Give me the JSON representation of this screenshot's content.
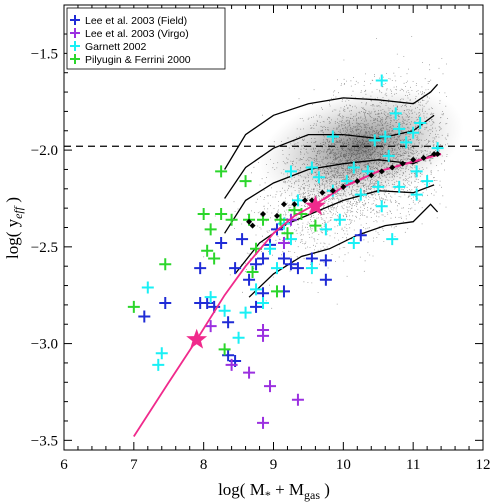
{
  "chart_data": {
    "type": "scatter",
    "xlim": [
      6,
      12
    ],
    "ylim": [
      -3.55,
      -1.25
    ],
    "x_ticks": [
      6,
      7,
      8,
      9,
      10,
      11,
      12
    ],
    "x_tick_labels": [
      "6",
      "7",
      "8",
      "9",
      "10",
      "11",
      "12"
    ],
    "y_ticks": [
      -3.5,
      -3.0,
      -2.5,
      -2.0,
      -1.5
    ],
    "y_tick_labels": [
      "−3.5",
      "−3.0",
      "−2.5",
      "−2.0",
      "−1.5"
    ],
    "xlabel": {
      "main": "log( M",
      "sub1": "*",
      "mid": " + M",
      "sub2": "gas",
      "end": " )"
    },
    "ylabel": {
      "main": "log( y",
      "sub": "eff",
      "end": " )"
    },
    "legend_position": "top-left",
    "reference_line": {
      "y": -1.98,
      "style": "dashed",
      "color": "#000000"
    },
    "series": [
      {
        "name": "Lee et al. 2003 (Field)",
        "color": "#1f2bd6",
        "marker": "plus",
        "points": [
          [
            7.15,
            -2.86
          ],
          [
            7.45,
            -2.79
          ],
          [
            7.95,
            -2.61
          ],
          [
            7.95,
            -2.79
          ],
          [
            8.05,
            -2.79
          ],
          [
            8.15,
            -2.81
          ],
          [
            8.25,
            -2.48
          ],
          [
            8.35,
            -2.89
          ],
          [
            8.35,
            -3.06
          ],
          [
            8.45,
            -3.09
          ],
          [
            8.45,
            -2.61
          ],
          [
            8.55,
            -2.46
          ],
          [
            8.65,
            -2.67
          ],
          [
            8.75,
            -2.59
          ],
          [
            8.75,
            -2.81
          ],
          [
            8.85,
            -2.56
          ],
          [
            8.85,
            -2.74
          ],
          [
            8.95,
            -2.49
          ],
          [
            9.05,
            -2.41
          ],
          [
            9.15,
            -2.56
          ],
          [
            9.15,
            -2.73
          ],
          [
            9.25,
            -2.59
          ],
          [
            9.35,
            -2.61
          ],
          [
            9.55,
            -2.56
          ],
          [
            9.75,
            -2.57
          ],
          [
            9.75,
            -2.67
          ],
          [
            10.25,
            -2.44
          ]
        ]
      },
      {
        "name": "Lee et al. 2003 (Virgo)",
        "color": "#9b30e0",
        "marker": "plus",
        "points": [
          [
            8.1,
            -2.91
          ],
          [
            8.4,
            -3.11
          ],
          [
            8.65,
            -3.15
          ],
          [
            8.85,
            -2.96
          ],
          [
            8.85,
            -2.93
          ],
          [
            8.85,
            -3.41
          ],
          [
            8.95,
            -3.22
          ],
          [
            9.35,
            -3.29
          ],
          [
            9.15,
            -2.48
          ],
          [
            9.25,
            -2.36
          ]
        ]
      },
      {
        "name": "Garnett 2002",
        "color": "#19f0f5",
        "marker": "plus",
        "points": [
          [
            7.2,
            -2.71
          ],
          [
            7.35,
            -3.11
          ],
          [
            7.4,
            -3.05
          ],
          [
            8.1,
            -2.76
          ],
          [
            8.3,
            -2.83
          ],
          [
            8.5,
            -2.97
          ],
          [
            8.6,
            -2.84
          ],
          [
            8.75,
            -2.72
          ],
          [
            8.85,
            -2.79
          ],
          [
            8.95,
            -2.51
          ],
          [
            9.05,
            -2.61
          ],
          [
            9.15,
            -2.38
          ],
          [
            9.25,
            -2.46
          ],
          [
            9.25,
            -2.11
          ],
          [
            9.35,
            -2.26
          ],
          [
            9.55,
            -2.09
          ],
          [
            9.55,
            -2.61
          ],
          [
            9.75,
            -2.41
          ],
          [
            9.85,
            -1.93
          ],
          [
            9.85,
            -2.21
          ],
          [
            9.95,
            -2.36
          ],
          [
            10.05,
            -2.16
          ],
          [
            10.15,
            -2.09
          ],
          [
            10.15,
            -2.48
          ],
          [
            10.25,
            -2.23
          ],
          [
            10.35,
            -2.11
          ],
          [
            10.45,
            -1.95
          ],
          [
            10.5,
            -2.19
          ],
          [
            10.55,
            -1.64
          ],
          [
            10.55,
            -2.29
          ],
          [
            10.6,
            -1.93
          ],
          [
            10.65,
            -2.03
          ],
          [
            10.7,
            -2.46
          ],
          [
            10.75,
            -1.81
          ],
          [
            10.8,
            -2.19
          ],
          [
            10.9,
            -1.96
          ],
          [
            11.0,
            -1.91
          ],
          [
            11.05,
            -2.11
          ],
          [
            11.05,
            -2.23
          ],
          [
            11.1,
            -1.86
          ],
          [
            11.2,
            -2.16
          ],
          [
            11.35,
            -1.99
          ],
          [
            10.8,
            -1.89
          ],
          [
            9.65,
            -2.14
          ]
        ]
      },
      {
        "name": "Pilyugin & Ferrini 2000",
        "color": "#2bd62b",
        "marker": "plus",
        "points": [
          [
            7.0,
            -2.81
          ],
          [
            7.45,
            -2.59
          ],
          [
            8.0,
            -2.33
          ],
          [
            8.05,
            -2.52
          ],
          [
            8.1,
            -2.41
          ],
          [
            8.15,
            -2.56
          ],
          [
            8.25,
            -2.33
          ],
          [
            8.25,
            -2.11
          ],
          [
            8.3,
            -3.03
          ],
          [
            8.4,
            -2.36
          ],
          [
            8.6,
            -2.16
          ],
          [
            8.65,
            -2.36
          ],
          [
            8.7,
            -2.63
          ],
          [
            8.75,
            -2.51
          ],
          [
            8.85,
            -2.36
          ],
          [
            9.05,
            -2.73
          ],
          [
            9.1,
            -2.36
          ],
          [
            9.2,
            -2.43
          ],
          [
            9.3,
            -2.31
          ],
          [
            9.4,
            -2.33
          ],
          [
            9.6,
            -2.39
          ]
        ]
      }
    ],
    "model_curve": {
      "color": "#f02a8c",
      "style": "solid",
      "points": [
        [
          7.0,
          -3.48
        ],
        [
          7.5,
          -3.2
        ],
        [
          7.9,
          -2.98
        ],
        [
          8.3,
          -2.75
        ],
        [
          8.6,
          -2.6
        ],
        [
          9.0,
          -2.43
        ],
        [
          9.3,
          -2.34
        ],
        [
          9.6,
          -2.28
        ],
        [
          10.0,
          -2.19
        ],
        [
          10.5,
          -2.11
        ],
        [
          11.0,
          -2.06
        ],
        [
          11.4,
          -2.02
        ]
      ]
    },
    "model_curve_dashed": {
      "color": "#f02a8c",
      "style": "dashed",
      "points": [
        [
          9.6,
          -2.28
        ],
        [
          10.0,
          -2.19
        ],
        [
          10.5,
          -2.11
        ],
        [
          11.0,
          -2.06
        ],
        [
          11.4,
          -2.02
        ]
      ]
    },
    "star_markers": {
      "color": "#f02a8c",
      "points": [
        [
          7.9,
          -2.98
        ],
        [
          9.6,
          -2.29
        ]
      ]
    },
    "diamond_markers": {
      "color": "#000000",
      "points": [
        [
          8.65,
          -2.37
        ],
        [
          8.7,
          -2.39
        ],
        [
          8.85,
          -2.33
        ],
        [
          9.05,
          -2.34
        ],
        [
          9.15,
          -2.28
        ],
        [
          9.3,
          -2.28
        ],
        [
          9.45,
          -2.26
        ],
        [
          9.55,
          -2.26
        ],
        [
          9.7,
          -2.22
        ],
        [
          9.85,
          -2.21
        ],
        [
          10.0,
          -2.19
        ],
        [
          10.2,
          -2.16
        ],
        [
          10.4,
          -2.13
        ],
        [
          10.55,
          -2.11
        ],
        [
          10.7,
          -2.09
        ],
        [
          10.85,
          -2.07
        ],
        [
          11.0,
          -2.05
        ],
        [
          11.15,
          -2.04
        ],
        [
          11.3,
          -2.02
        ],
        [
          11.35,
          -2.02
        ]
      ]
    },
    "percentile_lines": {
      "color": "#000000",
      "lines": [
        [
          [
            8.3,
            -2.1
          ],
          [
            8.6,
            -1.92
          ],
          [
            9.0,
            -1.82
          ],
          [
            9.5,
            -1.76
          ],
          [
            10.0,
            -1.73
          ],
          [
            10.5,
            -1.74
          ],
          [
            11.0,
            -1.76
          ],
          [
            11.25,
            -1.7
          ],
          [
            11.35,
            -1.66
          ]
        ],
        [
          [
            8.3,
            -2.25
          ],
          [
            8.6,
            -2.09
          ],
          [
            9.0,
            -1.99
          ],
          [
            9.5,
            -1.92
          ],
          [
            10.0,
            -1.92
          ],
          [
            10.5,
            -1.94
          ],
          [
            11.0,
            -1.9
          ],
          [
            11.3,
            -1.82
          ]
        ],
        [
          [
            8.3,
            -2.43
          ],
          [
            8.6,
            -2.26
          ],
          [
            9.0,
            -2.17
          ],
          [
            9.5,
            -2.1
          ],
          [
            10.0,
            -2.07
          ],
          [
            10.5,
            -2.05
          ],
          [
            11.0,
            -2.07
          ],
          [
            11.3,
            -2.02
          ]
        ],
        [
          [
            8.45,
            -2.64
          ],
          [
            8.8,
            -2.48
          ],
          [
            9.2,
            -2.38
          ],
          [
            9.6,
            -2.32
          ],
          [
            10.0,
            -2.26
          ],
          [
            10.5,
            -2.21
          ],
          [
            11.0,
            -2.22
          ],
          [
            11.3,
            -2.18
          ]
        ],
        [
          [
            8.65,
            -2.76
          ],
          [
            9.0,
            -2.64
          ],
          [
            9.4,
            -2.55
          ],
          [
            9.8,
            -2.51
          ],
          [
            10.2,
            -2.44
          ],
          [
            10.6,
            -2.39
          ],
          [
            11.0,
            -2.37
          ],
          [
            11.25,
            -2.28
          ],
          [
            11.35,
            -2.32
          ]
        ]
      ]
    },
    "background_density": {
      "x_range": [
        7.2,
        11.5
      ],
      "relation_center": [
        [
          7.5,
          -2.7
        ],
        [
          8.5,
          -2.45
        ],
        [
          9.5,
          -2.18
        ],
        [
          10.2,
          -2.06
        ],
        [
          11.0,
          -1.97
        ],
        [
          11.5,
          -1.92
        ]
      ],
      "core_center": [
        10.25,
        -1.98
      ]
    }
  }
}
